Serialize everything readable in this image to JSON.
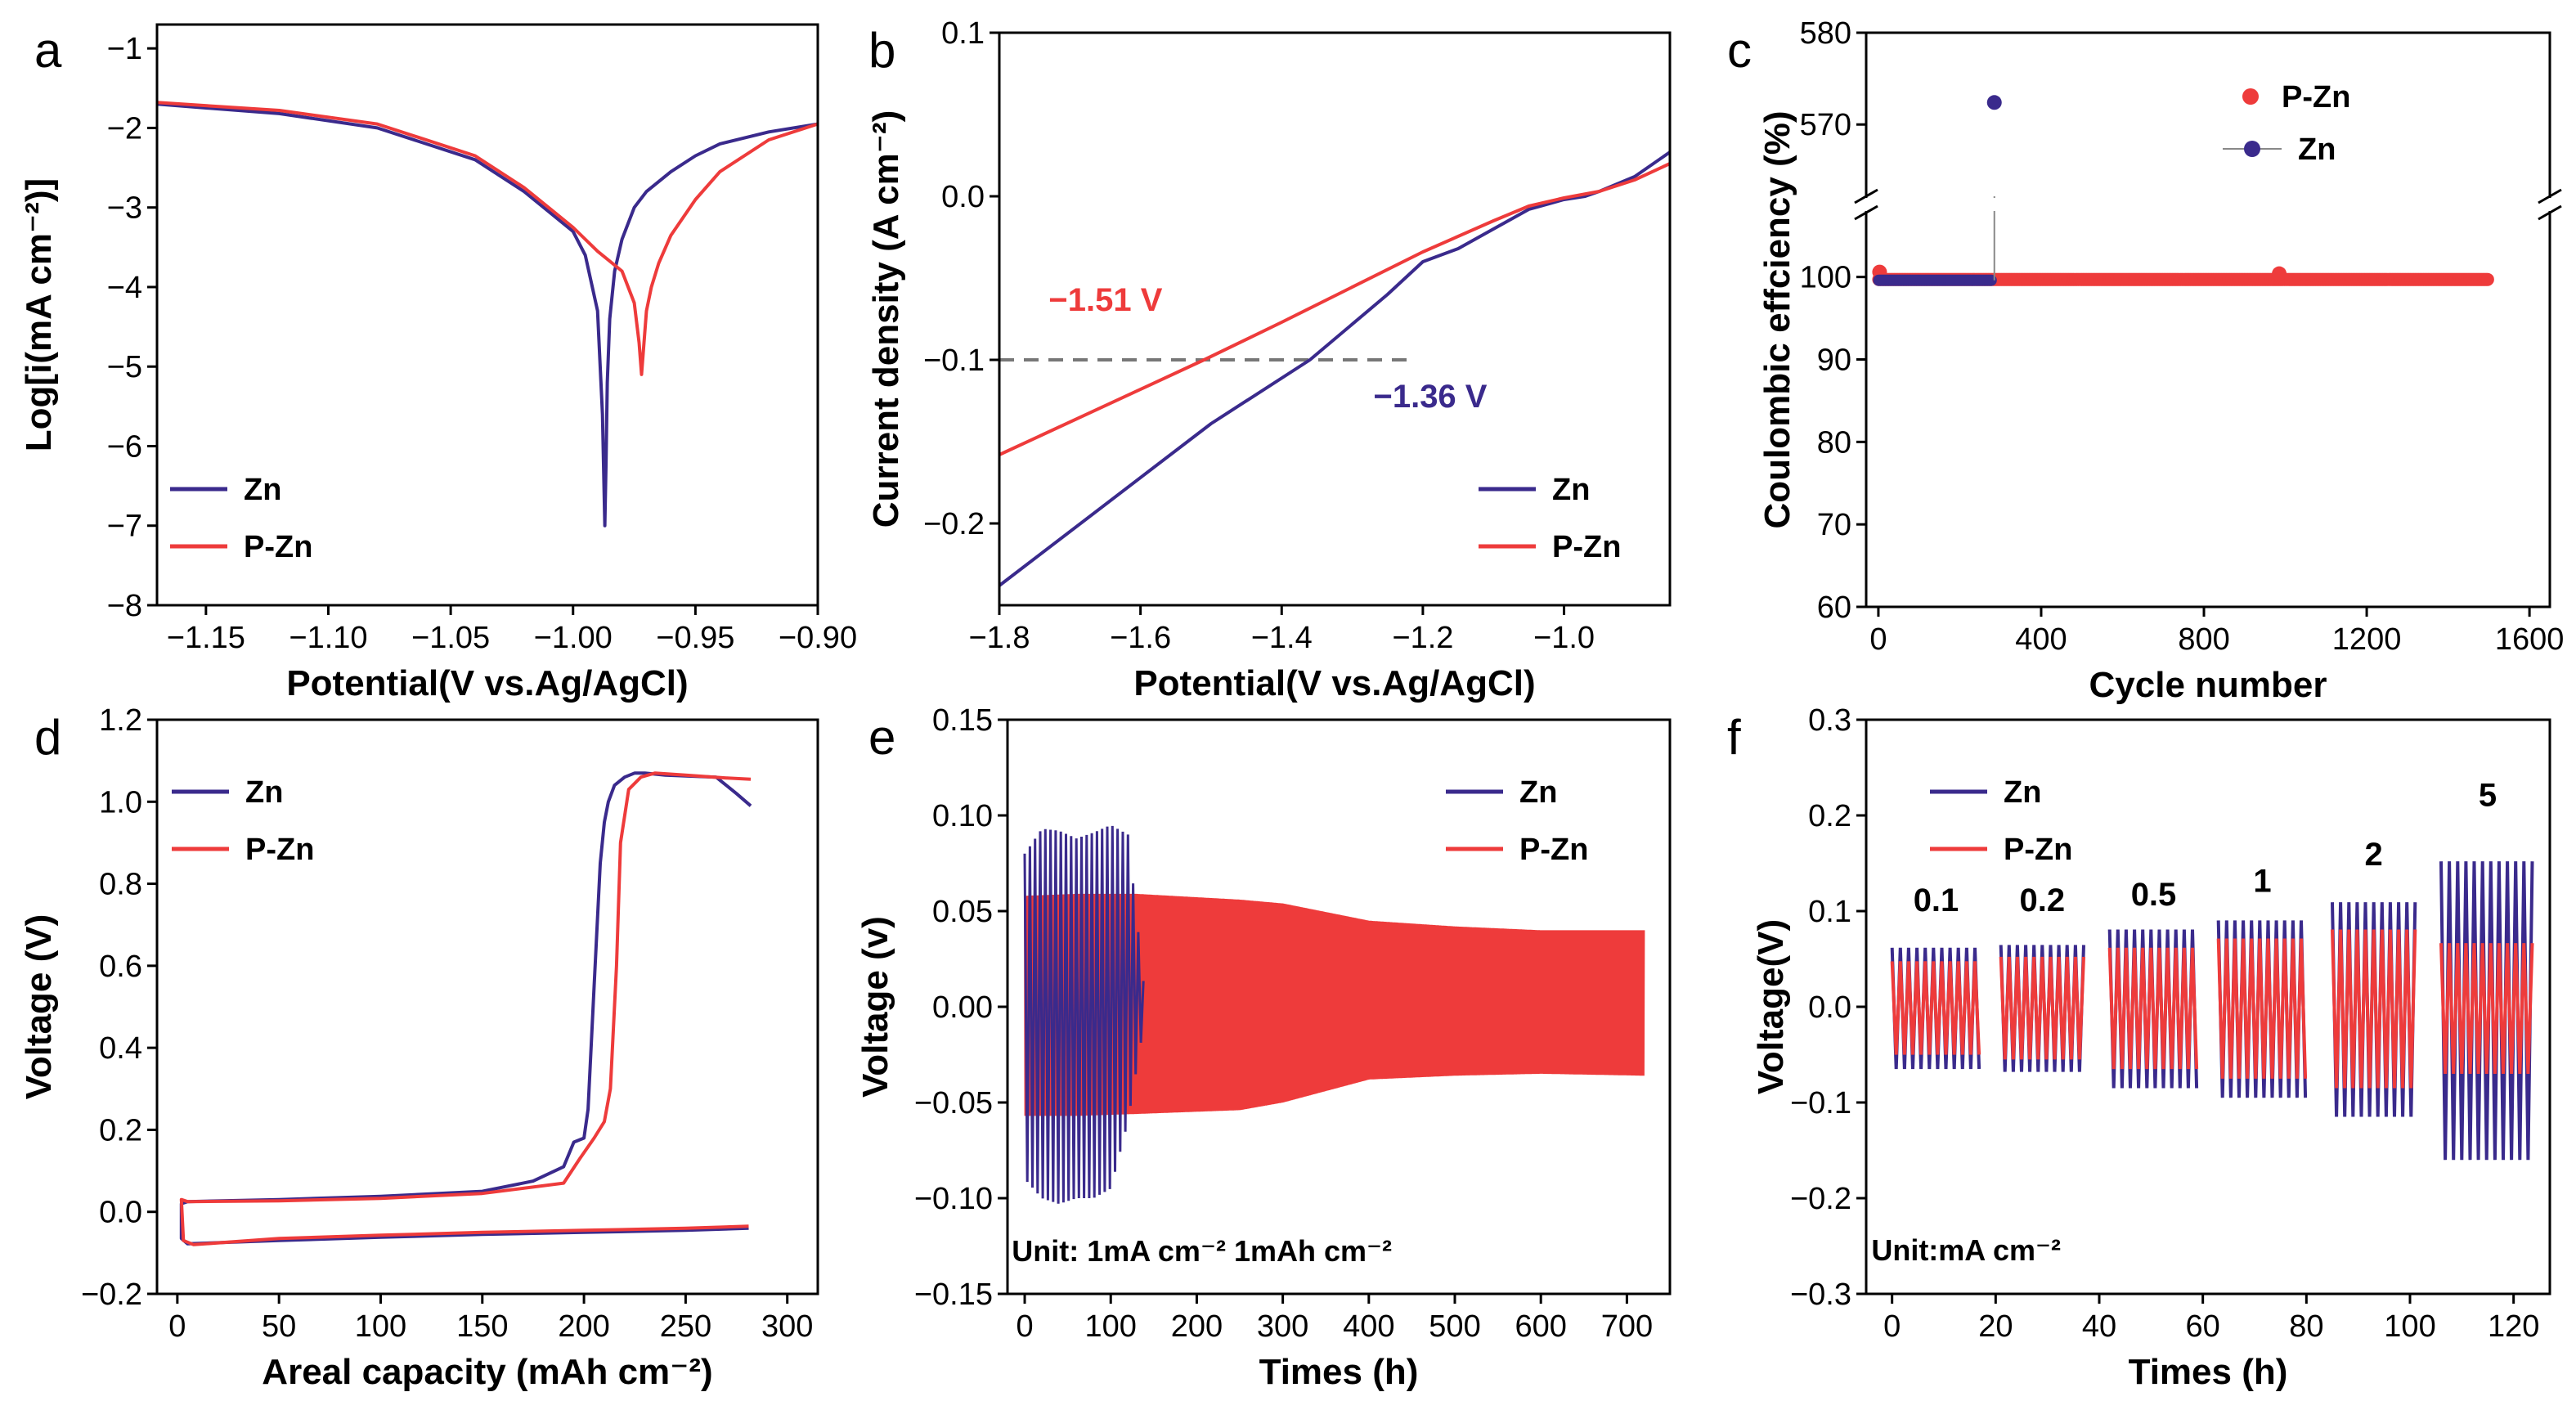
{
  "colors": {
    "zn": "#3a2a8c",
    "pzn": "#ee3b3b",
    "ref": "#777777"
  },
  "chart_data": [
    {
      "id": "a",
      "type": "line",
      "panel_label": "a",
      "xlabel": "Potential(V vs.Ag/AgCl)",
      "ylabel": "Log[i(mA cm⁻²)]",
      "xlim": [
        -1.17,
        -0.9
      ],
      "ylim": [
        -8,
        -0.7
      ],
      "xticks": [
        -1.15,
        -1.1,
        -1.05,
        -1.0,
        -0.95,
        -0.9
      ],
      "xtick_labels": [
        "−1.15",
        "−1.10",
        "−1.05",
        "−1.00",
        "−0.95",
        "−0.90"
      ],
      "yticks": [
        -8,
        -7,
        -6,
        -5,
        -4,
        -3,
        -2,
        -1
      ],
      "ytick_labels": [
        "−8",
        "−7",
        "−6",
        "−5",
        "−4",
        "−3",
        "−2",
        "−1"
      ],
      "legend": [
        "Zn",
        "P-Zn"
      ],
      "legend_position": "bottom-left",
      "series": [
        {
          "name": "Zn",
          "color": "zn",
          "x": [
            -1.17,
            -1.12,
            -1.08,
            -1.04,
            -1.02,
            -1.0,
            -0.995,
            -0.99,
            -0.988,
            -0.987,
            -0.9865,
            -0.986,
            -0.985,
            -0.983,
            -0.98,
            -0.975,
            -0.97,
            -0.96,
            -0.95,
            -0.94,
            -0.92,
            -0.9
          ],
          "y": [
            -1.7,
            -1.82,
            -2.0,
            -2.4,
            -2.8,
            -3.3,
            -3.6,
            -4.3,
            -5.6,
            -7.0,
            -6.2,
            -5.2,
            -4.4,
            -3.8,
            -3.4,
            -3.0,
            -2.8,
            -2.55,
            -2.35,
            -2.2,
            -2.05,
            -1.95
          ]
        },
        {
          "name": "P-Zn",
          "color": "pzn",
          "x": [
            -1.17,
            -1.12,
            -1.08,
            -1.04,
            -1.02,
            -1.0,
            -0.99,
            -0.98,
            -0.975,
            -0.973,
            -0.972,
            -0.971,
            -0.97,
            -0.968,
            -0.965,
            -0.96,
            -0.95,
            -0.94,
            -0.92,
            -0.9
          ],
          "y": [
            -1.68,
            -1.78,
            -1.95,
            -2.35,
            -2.75,
            -3.25,
            -3.55,
            -3.8,
            -4.2,
            -4.7,
            -5.1,
            -4.7,
            -4.3,
            -4.0,
            -3.7,
            -3.35,
            -2.9,
            -2.55,
            -2.15,
            -1.95
          ]
        }
      ]
    },
    {
      "id": "b",
      "type": "line",
      "panel_label": "b",
      "xlabel": "Potential(V vs.Ag/AgCl)",
      "ylabel": "Current density (A cm⁻²)",
      "xlim": [
        -1.8,
        -0.85
      ],
      "ylim": [
        -0.25,
        0.1
      ],
      "xticks": [
        -1.8,
        -1.6,
        -1.4,
        -1.2,
        -1.0
      ],
      "xtick_labels": [
        "−1.8",
        "−1.6",
        "−1.4",
        "−1.2",
        "−1.0"
      ],
      "yticks": [
        -0.2,
        -0.1,
        0.0,
        0.1
      ],
      "ytick_labels": [
        "−0.2",
        "−0.1",
        "0.0",
        "0.1"
      ],
      "legend": [
        "Zn",
        "P-Zn"
      ],
      "legend_position": "bottom-right",
      "reference_line": {
        "y": -0.1,
        "x_from": -1.8,
        "x_to": -1.22
      },
      "annotations": [
        {
          "text": "−1.51 V",
          "x": -1.73,
          "y": -0.07,
          "color": "pzn"
        },
        {
          "text": "−1.36 V",
          "x": -1.27,
          "y": -0.129,
          "color": "zn"
        }
      ],
      "series": [
        {
          "name": "Zn",
          "color": "zn",
          "x": [
            -1.8,
            -1.5,
            -1.36,
            -1.25,
            -1.2,
            -1.15,
            -1.1,
            -1.05,
            -1.0,
            -0.97,
            -0.95,
            -0.9,
            -0.85
          ],
          "y": [
            -0.238,
            -0.139,
            -0.1,
            -0.06,
            -0.04,
            -0.032,
            -0.02,
            -0.008,
            -0.002,
            0.0,
            0.003,
            0.012,
            0.027
          ]
        },
        {
          "name": "P-Zn",
          "color": "pzn",
          "x": [
            -1.8,
            -1.51,
            -1.4,
            -1.2,
            -1.1,
            -1.05,
            -1.0,
            -0.95,
            -0.9,
            -0.85
          ],
          "y": [
            -0.158,
            -0.1,
            -0.077,
            -0.034,
            -0.015,
            -0.006,
            -0.001,
            0.003,
            0.01,
            0.02
          ]
        }
      ]
    },
    {
      "id": "c",
      "type": "scatter",
      "panel_label": "c",
      "xlabel": "Cycle number",
      "ylabel": "Coulombic effciency (%)",
      "xlim": [
        -30,
        1650
      ],
      "ylim_lower": [
        60,
        108
      ],
      "ylim_upper": [
        562,
        580
      ],
      "xticks": [
        0,
        400,
        800,
        1200,
        1600
      ],
      "xtick_labels": [
        "0",
        "400",
        "800",
        "1200",
        "1600"
      ],
      "yticks_lower": [
        60,
        70,
        80,
        90,
        100
      ],
      "ytick_labels_lower": [
        "60",
        "70",
        "80",
        "90",
        "100"
      ],
      "yticks_upper": [
        570,
        580
      ],
      "ytick_labels_upper": [
        "570",
        "580"
      ],
      "legend": [
        "P-Zn",
        "Zn"
      ],
      "legend_position": "top-right",
      "series": [
        {
          "name": "P-Zn",
          "color": "pzn",
          "cycles": [
            1,
            1500
          ],
          "ce_percent_approx": 99.7,
          "outliers": [
            {
              "x": 3,
              "y": 100.6
            },
            {
              "x": 985,
              "y": 100.4
            }
          ]
        },
        {
          "name": "Zn",
          "color": "zn",
          "cycles": [
            1,
            280
          ],
          "ce_percent_approx": 99.6,
          "outliers": [
            {
              "x": 285,
              "y": 572.4
            }
          ]
        }
      ]
    },
    {
      "id": "d",
      "type": "line",
      "panel_label": "d",
      "xlabel": "Areal capacity (mAh cm⁻²)",
      "ylabel": "Voltage (V)",
      "xlim": [
        -10,
        315
      ],
      "ylim": [
        -0.2,
        1.2
      ],
      "xticks": [
        0,
        50,
        100,
        150,
        200,
        250,
        300
      ],
      "xtick_labels": [
        "0",
        "50",
        "100",
        "150",
        "200",
        "250",
        "300"
      ],
      "yticks": [
        -0.2,
        0.0,
        0.2,
        0.4,
        0.6,
        0.8,
        1.0,
        1.2
      ],
      "ytick_labels": [
        "−0.2",
        "0.0",
        "0.2",
        "0.4",
        "0.6",
        "0.8",
        "1.0",
        "1.2"
      ],
      "legend": [
        "Zn",
        "P-Zn"
      ],
      "legend_position": "top-left",
      "series": [
        {
          "name": "Zn",
          "color": "zn",
          "x": [
            281,
            250,
            200,
            150,
            100,
            50,
            5,
            2,
            2,
            5,
            50,
            100,
            150,
            175,
            190,
            195,
            200,
            202,
            205,
            208,
            210,
            212,
            215,
            220,
            225,
            230,
            240,
            265,
            270,
            275,
            282
          ],
          "y": [
            -0.04,
            -0.045,
            -0.05,
            -0.055,
            -0.062,
            -0.07,
            -0.078,
            -0.065,
            0.02,
            0.025,
            0.03,
            0.038,
            0.05,
            0.075,
            0.11,
            0.17,
            0.18,
            0.25,
            0.55,
            0.85,
            0.95,
            1.0,
            1.04,
            1.06,
            1.07,
            1.07,
            1.065,
            1.06,
            1.04,
            1.02,
            0.99
          ]
        },
        {
          "name": "P-Zn",
          "color": "pzn",
          "x": [
            281,
            250,
            200,
            150,
            100,
            50,
            8,
            3,
            2,
            5,
            50,
            100,
            150,
            190,
            198,
            205,
            210,
            213,
            216,
            218,
            222,
            228,
            235,
            250,
            270,
            282
          ],
          "y": [
            -0.035,
            -0.04,
            -0.045,
            -0.05,
            -0.057,
            -0.065,
            -0.08,
            -0.07,
            0.03,
            0.025,
            0.027,
            0.033,
            0.045,
            0.07,
            0.13,
            0.18,
            0.22,
            0.3,
            0.6,
            0.9,
            1.03,
            1.06,
            1.07,
            1.065,
            1.058,
            1.055
          ]
        }
      ]
    },
    {
      "id": "e",
      "type": "line",
      "panel_label": "e",
      "xlabel": "Times (h)",
      "ylabel": "Voltage (v)",
      "xlim": [
        -20,
        750
      ],
      "ylim": [
        -0.15,
        0.15
      ],
      "xticks": [
        0,
        100,
        200,
        300,
        400,
        500,
        600,
        700
      ],
      "xtick_labels": [
        "0",
        "100",
        "200",
        "300",
        "400",
        "500",
        "600",
        "700"
      ],
      "yticks": [
        -0.15,
        -0.1,
        -0.05,
        0.0,
        0.05,
        0.1,
        0.15
      ],
      "ytick_labels": [
        "−0.15",
        "−0.10",
        "−0.05",
        "0.00",
        "0.05",
        "0.10",
        "0.15"
      ],
      "legend": [
        "Zn",
        "P-Zn"
      ],
      "legend_position": "top-right",
      "annotations": [
        {
          "text": "Unit: 1mA cm⁻²  1mAh cm⁻²",
          "x": -15,
          "y": -0.133,
          "color": "black"
        }
      ],
      "series": [
        {
          "name": "P-Zn",
          "color": "pzn",
          "envelope_x": [
            0,
            60,
            130,
            250,
            300,
            400,
            500,
            600,
            720
          ],
          "envelope_upper": [
            0.058,
            0.059,
            0.059,
            0.056,
            0.054,
            0.045,
            0.042,
            0.04,
            0.04
          ],
          "envelope_lower": [
            -0.057,
            -0.057,
            -0.056,
            -0.054,
            -0.05,
            -0.038,
            -0.036,
            -0.035,
            -0.036
          ]
        },
        {
          "name": "Zn",
          "color": "zn",
          "envelope_x": [
            0,
            20,
            40,
            60,
            80,
            100,
            120,
            140
          ],
          "envelope_upper": [
            0.08,
            0.093,
            0.092,
            0.088,
            0.091,
            0.095,
            0.09,
            0.005
          ],
          "envelope_lower": [
            -0.09,
            -0.1,
            -0.103,
            -0.1,
            -0.1,
            -0.095,
            -0.06,
            -0.005
          ]
        }
      ]
    },
    {
      "id": "f",
      "type": "line",
      "panel_label": "f",
      "xlabel": "Times (h)",
      "ylabel": "Voltage(V)",
      "xlim": [
        -5,
        127
      ],
      "ylim": [
        -0.3,
        0.3
      ],
      "xticks": [
        0,
        20,
        40,
        60,
        80,
        100,
        120
      ],
      "xtick_labels": [
        "0",
        "20",
        "40",
        "60",
        "80",
        "100",
        "120"
      ],
      "yticks": [
        -0.3,
        -0.2,
        -0.1,
        0.0,
        0.1,
        0.2,
        0.3
      ],
      "ytick_labels": [
        "−0.3",
        "−0.2",
        "−0.1",
        "0.0",
        "0.1",
        "0.2",
        "0.3"
      ],
      "legend": [
        "Zn",
        "P-Zn"
      ],
      "legend_position": "top-left",
      "annotations": [
        {
          "text": "Unit:mA cm⁻²",
          "x": -4,
          "y": -0.265,
          "color": "black"
        }
      ],
      "rate_segments": [
        {
          "label": "0.1",
          "x_start": 0,
          "x_end": 17,
          "zn_amp": 0.065,
          "pzn_amp": 0.05,
          "label_y": 0.1
        },
        {
          "label": "0.2",
          "x_start": 21,
          "x_end": 37,
          "zn_amp": 0.068,
          "pzn_amp": 0.055,
          "label_y": 0.1
        },
        {
          "label": "0.5",
          "x_start": 42,
          "x_end": 59,
          "zn_amp": 0.085,
          "pzn_amp": 0.065,
          "label_y": 0.106
        },
        {
          "label": "1",
          "x_start": 63,
          "x_end": 80,
          "zn_amp": 0.095,
          "pzn_amp": 0.075,
          "label_y": 0.12
        },
        {
          "label": "2",
          "x_start": 85,
          "x_end": 101,
          "zn_amp": 0.115,
          "pzn_amp": 0.085,
          "label_y": 0.148
        },
        {
          "label": "5",
          "x_start": 106,
          "x_end": 124,
          "zn_amp": 0.16,
          "pzn_amp": 0.07,
          "label_y": 0.21
        }
      ]
    }
  ]
}
